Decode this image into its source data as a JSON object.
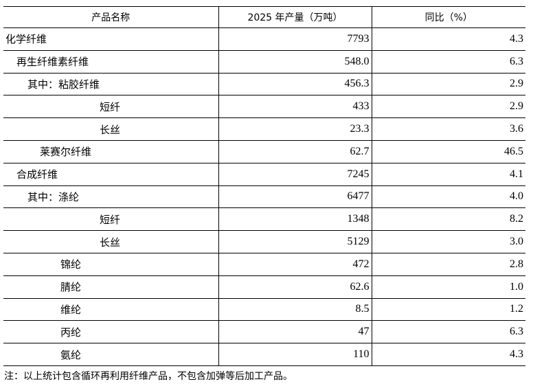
{
  "table": {
    "headers": [
      "产品名称",
      "2025 年产量（万吨）",
      "同比（%）"
    ],
    "rows": [
      {
        "name": "化学纤维",
        "indent": 0,
        "output": "7793",
        "yoy": "4.3"
      },
      {
        "name": "再生纤维素纤维",
        "indent": 1,
        "output": "548.0",
        "yoy": "6.3"
      },
      {
        "name": "其中：粘胶纤维",
        "indent": 2,
        "output": "456.3",
        "yoy": "2.9"
      },
      {
        "name": "短纤",
        "indent": 5,
        "output": "433",
        "yoy": "2.9"
      },
      {
        "name": "长丝",
        "indent": 5,
        "output": "23.3",
        "yoy": "3.6"
      },
      {
        "name": "莱赛尔纤维",
        "indent": 3,
        "output": "62.7",
        "yoy": "46.5"
      },
      {
        "name": "合成纤维",
        "indent": 1,
        "output": "7245",
        "yoy": "4.1"
      },
      {
        "name": "其中：涤纶",
        "indent": 2,
        "output": "6477",
        "yoy": "4.0"
      },
      {
        "name": "短纤",
        "indent": 5,
        "output": "1348",
        "yoy": "8.2"
      },
      {
        "name": "长丝",
        "indent": 5,
        "output": "5129",
        "yoy": "3.0"
      },
      {
        "name": "锦纶",
        "indent": 4,
        "output": "472",
        "yoy": "2.8"
      },
      {
        "name": "腈纶",
        "indent": 4,
        "output": "62.6",
        "yoy": "1.0"
      },
      {
        "name": "维纶",
        "indent": 4,
        "output": "8.5",
        "yoy": "1.2"
      },
      {
        "name": "丙纶",
        "indent": 4,
        "output": "47",
        "yoy": "6.3"
      },
      {
        "name": "氨纶",
        "indent": 4,
        "output": "110",
        "yoy": "4.3"
      }
    ]
  },
  "note": "注：以上统计包含循环再利用纤维产品，不包含加弹等后加工产品。"
}
